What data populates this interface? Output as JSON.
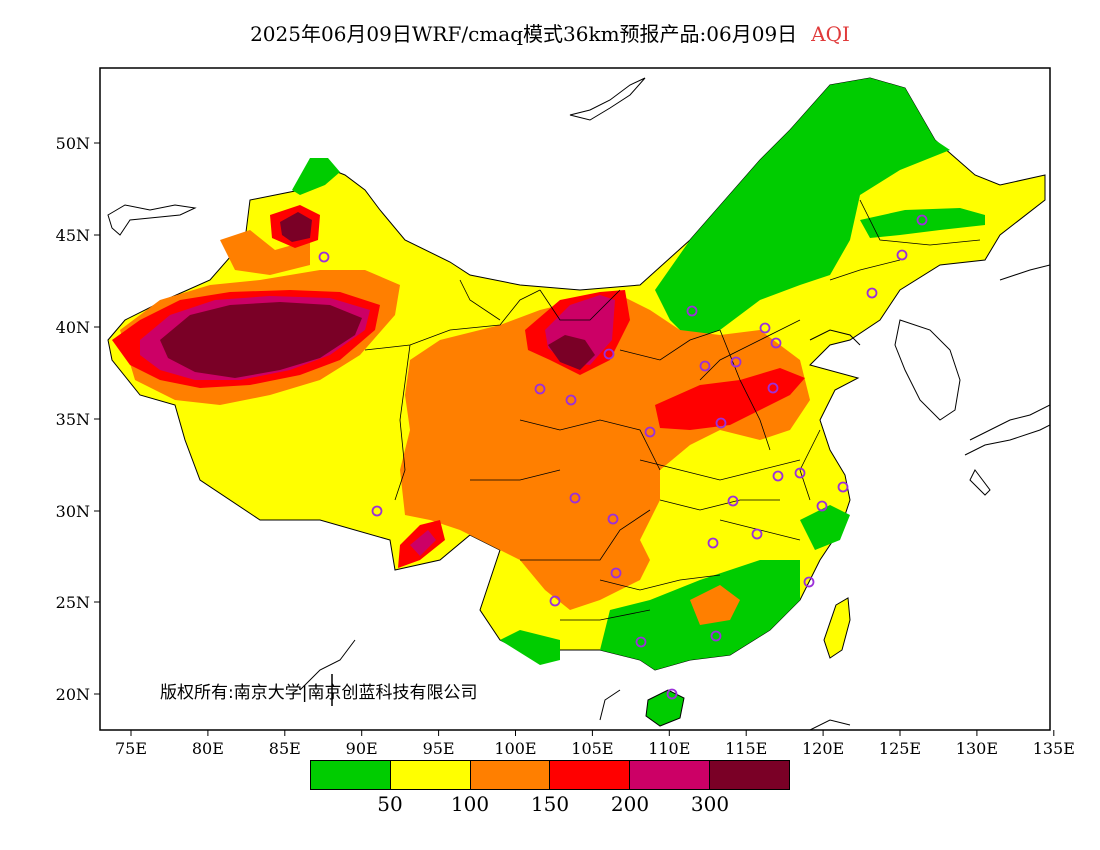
{
  "title": {
    "main": "2025年06月09日WRF/cmaq模式36km预报产品:06月09日",
    "variable": "AQI"
  },
  "axes": {
    "y_ticks": [
      "50N",
      "45N",
      "40N",
      "35N",
      "30N",
      "25N",
      "20N"
    ],
    "x_ticks": [
      "75E",
      "80E",
      "85E",
      "90E",
      "95E",
      "100E",
      "105E",
      "110E",
      "115E",
      "120E",
      "125E",
      "130E",
      "135E"
    ]
  },
  "copyright": "版权所有:南京大学|南京创蓝科技有限公司",
  "legend": {
    "colors": [
      "#00cc00",
      "#ffff00",
      "#ff7f00",
      "#ff0000",
      "#cc0066",
      "#7a0026"
    ],
    "labels": [
      "50",
      "100",
      "150",
      "200",
      "300"
    ]
  },
  "colors": {
    "ocean": "#ffffff",
    "marker": "#9b30d9",
    "border": "#000000"
  }
}
